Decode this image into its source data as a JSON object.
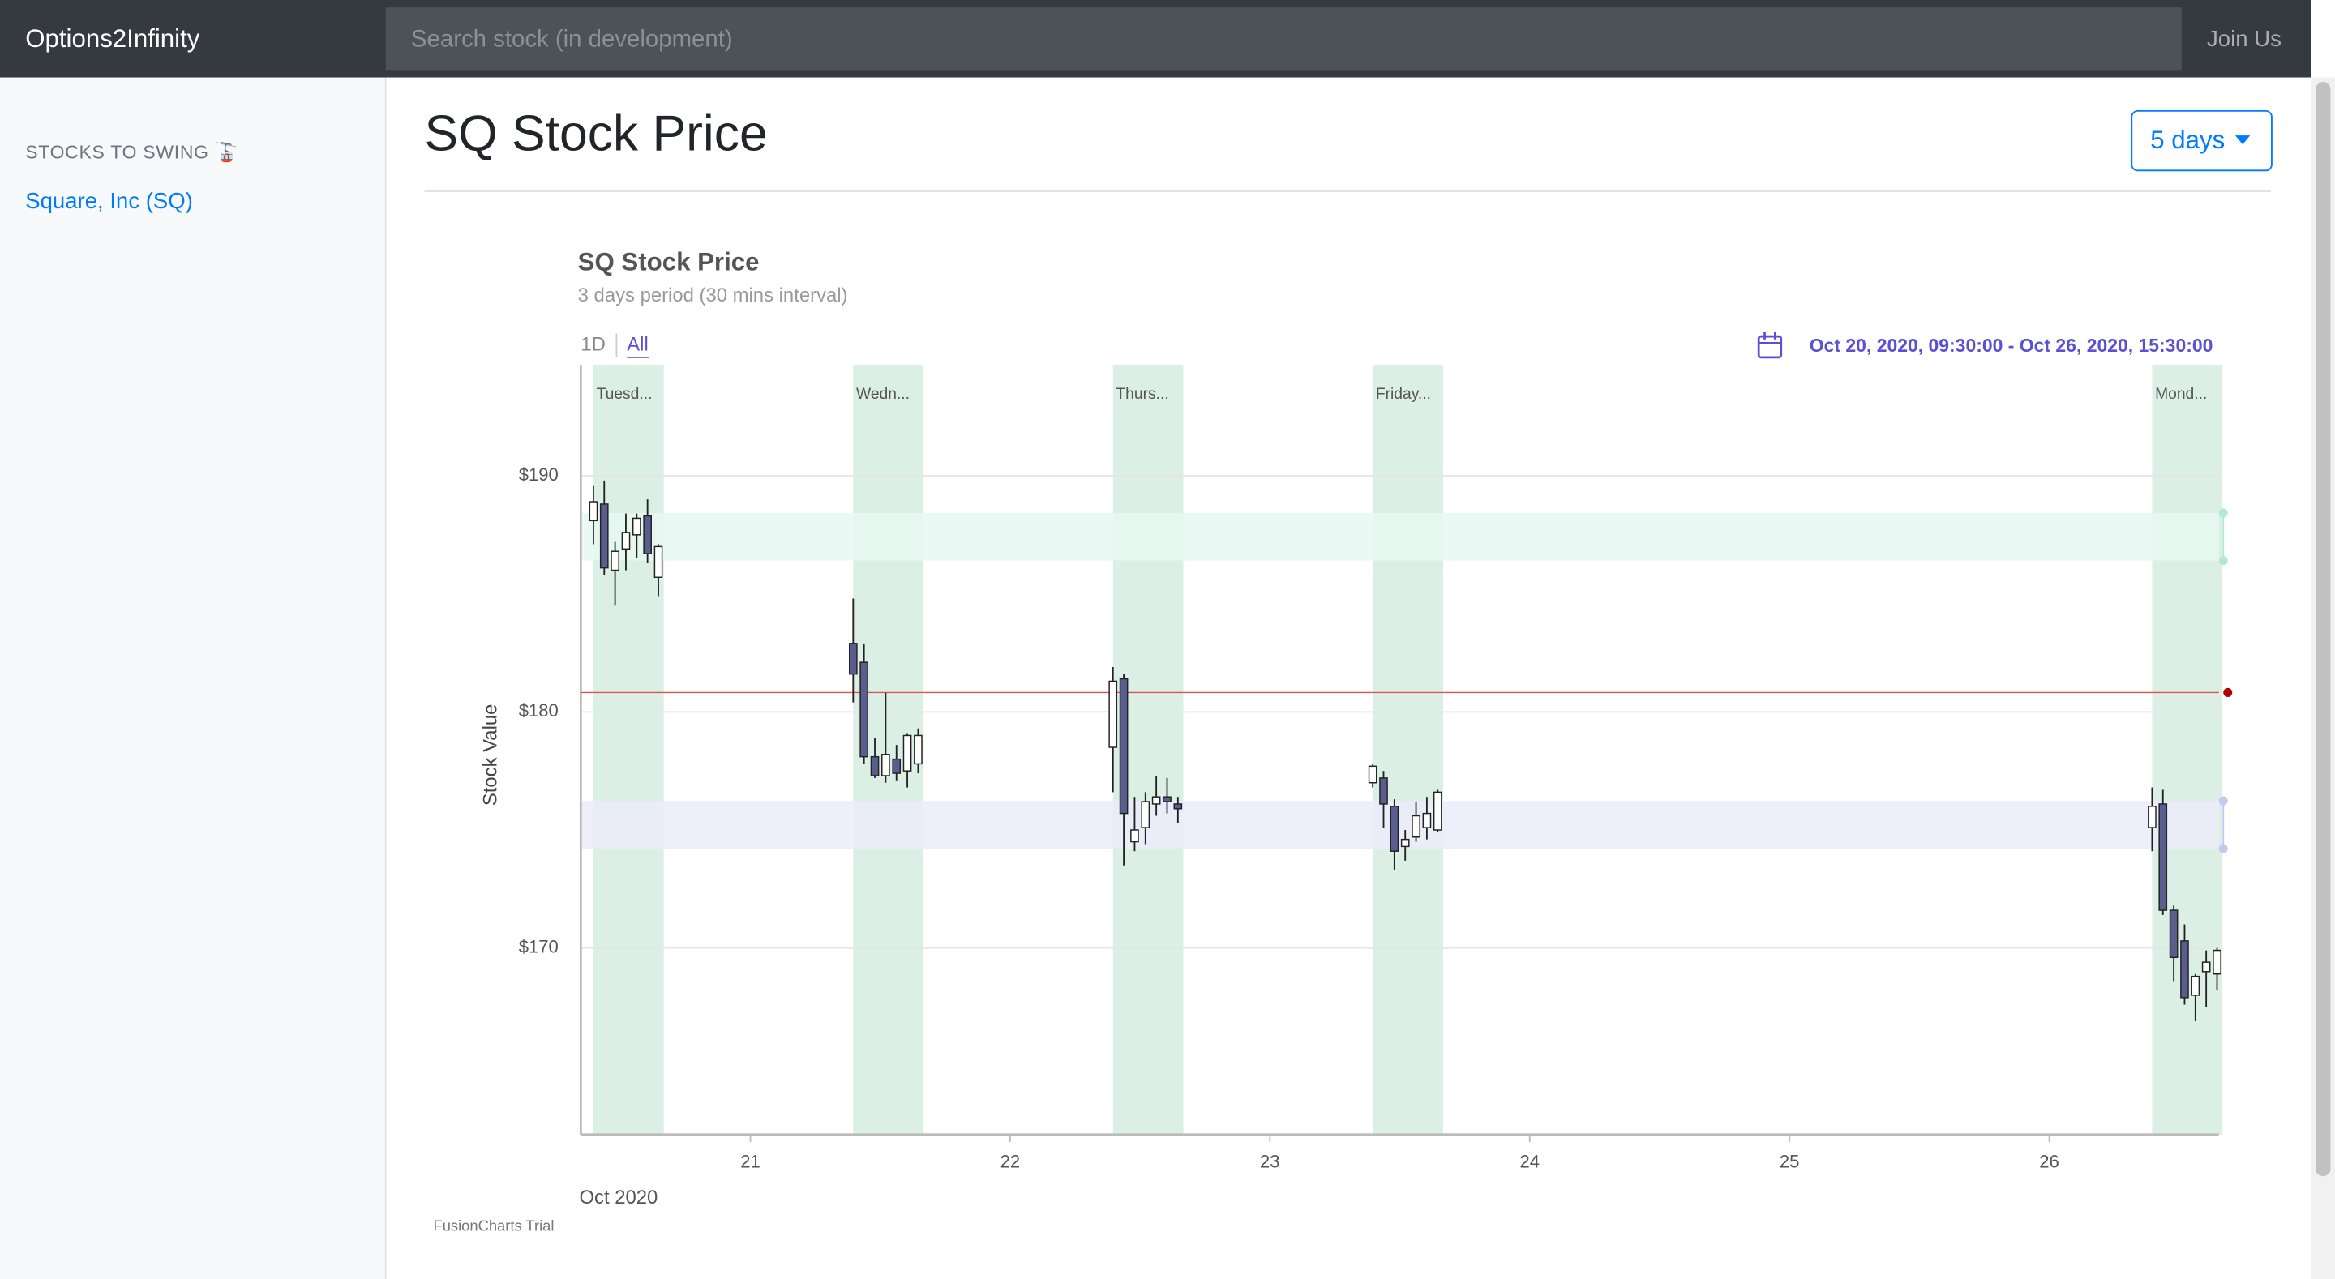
{
  "navbar": {
    "brand": "Options2Infinity",
    "search_placeholder": "Search stock (in development)",
    "join": "Join Us"
  },
  "sidebar": {
    "heading": "STOCKS TO SWING 🚡",
    "links": [
      "Square, Inc (SQ)"
    ]
  },
  "page_title": "SQ Stock Price",
  "period_button": "5 days",
  "chart_data": {
    "type": "candlestick",
    "title": "SQ Stock Price",
    "subtitle": "3 days period (30 mins interval)",
    "y_label": "Stock Value",
    "range_buttons": [
      "1D",
      "All"
    ],
    "date_range": "Oct 20, 2020, 09:30:00 - Oct 26, 2020, 15:30:00",
    "x_caption": "Oct 2020",
    "watermark": "FusionCharts Trial",
    "x": [
      "2020-10-20 09:30:00",
      "2020-10-20 10:30:00",
      "2020-10-20 11:30:00",
      "2020-10-20 12:30:00",
      "2020-10-20 13:30:00",
      "2020-10-20 14:30:00",
      "2020-10-20 15:30:00",
      "2020-10-21 09:30:00",
      "2020-10-21 10:30:00",
      "2020-10-21 11:30:00",
      "2020-10-21 12:30:00",
      "2020-10-21 13:30:00",
      "2020-10-21 14:30:00",
      "2020-10-21 15:30:00",
      "2020-10-22 09:30:00",
      "2020-10-22 10:30:00",
      "2020-10-22 11:30:00",
      "2020-10-22 12:30:00",
      "2020-10-22 13:30:00",
      "2020-10-22 14:30:00",
      "2020-10-22 15:30:00",
      "2020-10-23 09:30:00",
      "2020-10-23 10:30:00",
      "2020-10-23 11:30:00",
      "2020-10-23 12:30:00",
      "2020-10-23 13:30:00",
      "2020-10-23 14:30:00",
      "2020-10-23 15:30:00",
      "2020-10-26 09:30:00",
      "2020-10-26 10:30:00",
      "2020-10-26 11:30:00",
      "2020-10-26 12:30:00",
      "2020-10-26 13:30:00",
      "2020-10-26 14:30:00",
      "2020-10-26 15:30:00"
    ],
    "open": [
      188.1,
      188.8,
      186.0,
      186.9,
      187.5,
      188.3,
      185.7,
      182.9,
      182.1,
      178.1,
      177.3,
      178.0,
      177.5,
      177.8,
      178.5,
      181.4,
      174.5,
      175.1,
      176.1,
      176.4,
      176.1,
      177.0,
      177.2,
      176.0,
      174.3,
      174.7,
      175.1,
      175.0,
      175.1,
      176.1,
      171.6,
      170.3,
      168.0,
      169.0,
      168.9
    ],
    "high": [
      189.6,
      189.8,
      187.2,
      188.4,
      188.4,
      189.0,
      187.1,
      184.8,
      182.9,
      178.9,
      180.8,
      178.6,
      179.1,
      179.3,
      181.9,
      181.6,
      176.4,
      176.6,
      177.3,
      177.2,
      176.4,
      177.8,
      177.5,
      176.3,
      175.0,
      176.2,
      176.4,
      176.7,
      176.8,
      176.7,
      171.8,
      171.0,
      168.9,
      169.9,
      170.0
    ],
    "low": [
      187.1,
      185.8,
      184.5,
      186.0,
      186.5,
      186.3,
      184.9,
      180.4,
      177.8,
      177.2,
      177.0,
      177.1,
      176.8,
      177.4,
      176.6,
      173.5,
      174.1,
      174.4,
      175.6,
      175.7,
      175.3,
      176.8,
      175.1,
      173.3,
      173.7,
      174.5,
      174.6,
      174.9,
      174.1,
      171.4,
      168.6,
      167.6,
      166.9,
      167.5,
      168.2
    ],
    "close": [
      188.9,
      186.1,
      186.8,
      187.6,
      188.2,
      186.7,
      187.0,
      181.6,
      178.1,
      177.3,
      178.2,
      177.4,
      179.0,
      179.0,
      181.3,
      175.7,
      175.0,
      176.2,
      176.4,
      176.2,
      175.9,
      177.7,
      176.1,
      174.1,
      174.6,
      175.6,
      175.7,
      176.6,
      176.0,
      171.6,
      169.6,
      167.9,
      168.8,
      169.4,
      169.9
    ],
    "up_color": "#ffffff",
    "down_color": "#5a5e8e",
    "xlim": [
      "2020-10-20 08:20:00",
      "2020-10-26 15:40:00"
    ],
    "xticks": [
      {
        "value": "2020-10-21 00:00:00",
        "label": "21"
      },
      {
        "value": "2020-10-22 00:00:00",
        "label": "22"
      },
      {
        "value": "2020-10-23 00:00:00",
        "label": "23"
      },
      {
        "value": "2020-10-24 00:00:00",
        "label": "24"
      },
      {
        "value": "2020-10-25 00:00:00",
        "label": "25"
      },
      {
        "value": "2020-10-26 00:00:00",
        "label": "26"
      }
    ],
    "ylim": [
      162.1,
      194.7
    ],
    "yticks": [
      {
        "value": 170,
        "label": "$170"
      },
      {
        "value": 180,
        "label": "$180"
      },
      {
        "value": 190,
        "label": "$190"
      }
    ],
    "grid": true,
    "day_bands": [
      {
        "label": "Tuesd...",
        "start": "2020-10-20 09:30:00",
        "end": "2020-10-20 16:00:00"
      },
      {
        "label": "Wedn...",
        "start": "2020-10-21 09:30:00",
        "end": "2020-10-21 16:00:00"
      },
      {
        "label": "Thurs...",
        "start": "2020-10-22 09:30:00",
        "end": "2020-10-22 16:00:00"
      },
      {
        "label": "Friday...",
        "start": "2020-10-23 09:30:00",
        "end": "2020-10-23 16:00:00"
      },
      {
        "label": "Mond...",
        "start": "2020-10-26 09:30:00",
        "end": "2020-10-26 16:00:00"
      }
    ],
    "day_band_color": "#dcefe5",
    "reference_line": {
      "value": 180.82,
      "color": "#d9534f"
    },
    "zones": [
      {
        "from": 186.41,
        "to": 188.42,
        "color": "#e6f8f1",
        "marker": "#b3e8d8"
      },
      {
        "from": 174.21,
        "to": 176.23,
        "color": "#ececfb",
        "marker": "#c7c7f0"
      }
    ]
  }
}
